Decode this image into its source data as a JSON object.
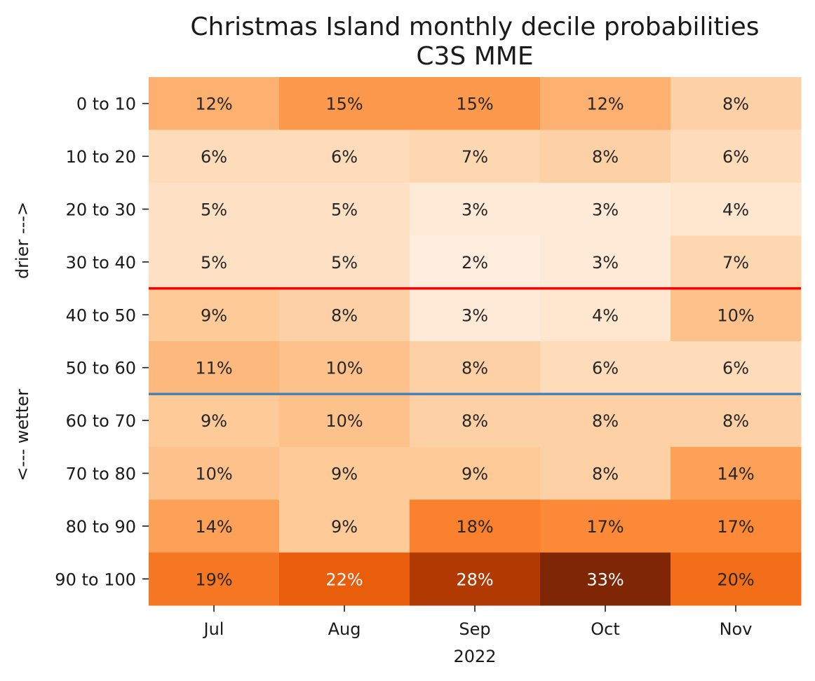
{
  "chart_data": {
    "type": "heatmap",
    "title": "Christmas Island monthly decile probabilities",
    "subtitle": "C3S MME",
    "xlabel": "2022",
    "ylabel_top": "drier --->",
    "ylabel_bottom": "<--- wetter",
    "x_categories": [
      "Jul",
      "Aug",
      "Sep",
      "Oct",
      "Nov"
    ],
    "y_categories": [
      "0 to 10",
      "10 to 20",
      "20 to 30",
      "30 to 40",
      "40 to 50",
      "50 to 60",
      "60 to 70",
      "70 to 80",
      "80 to 90",
      "90 to 100"
    ],
    "value_format": "percent",
    "values": [
      [
        12,
        15,
        15,
        12,
        8
      ],
      [
        6,
        6,
        7,
        8,
        6
      ],
      [
        5,
        5,
        3,
        3,
        4
      ],
      [
        5,
        5,
        2,
        3,
        7
      ],
      [
        9,
        8,
        3,
        4,
        10
      ],
      [
        11,
        10,
        8,
        6,
        6
      ],
      [
        9,
        10,
        8,
        8,
        8
      ],
      [
        10,
        9,
        9,
        8,
        14
      ],
      [
        14,
        9,
        18,
        17,
        17
      ],
      [
        19,
        22,
        28,
        33,
        20
      ]
    ],
    "colormap": "Oranges",
    "color_range": [
      0,
      33
    ],
    "colorbar": false,
    "reference_lines": [
      {
        "between_rows": [
          "30 to 40",
          "40 to 50"
        ],
        "color": "#ff0000"
      },
      {
        "between_rows": [
          "50 to 60",
          "60 to 70"
        ],
        "color": "#4682b4"
      }
    ]
  }
}
